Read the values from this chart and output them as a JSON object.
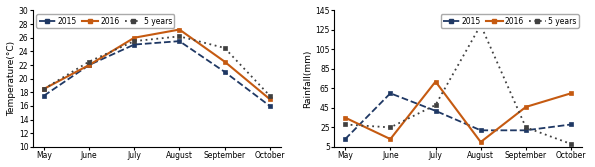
{
  "months": [
    "May",
    "June",
    "July",
    "August",
    "September",
    "October"
  ],
  "temp_2015": [
    17.5,
    22.0,
    25.0,
    25.5,
    21.0,
    16.0
  ],
  "temp_2016": [
    18.5,
    22.0,
    26.0,
    27.2,
    22.5,
    17.0
  ],
  "temp_5years": [
    18.5,
    22.5,
    25.5,
    26.2,
    24.5,
    17.5
  ],
  "rain_2015": [
    13,
    60,
    42,
    22,
    22,
    28
  ],
  "rain_2016": [
    35,
    13,
    72,
    10,
    46,
    60
  ],
  "rain_5years": [
    28,
    25,
    48,
    130,
    25,
    8
  ],
  "temp_ylim": [
    10,
    30
  ],
  "temp_yticks": [
    10,
    12,
    14,
    16,
    18,
    20,
    22,
    24,
    26,
    28,
    30
  ],
  "rain_ylim": [
    5,
    145
  ],
  "rain_yticks": [
    5,
    25,
    45,
    65,
    85,
    105,
    125,
    145
  ],
  "color_2015": "#1f3864",
  "color_2016": "#c55a11",
  "color_5years": "#404040",
  "bg_color": "#ffffff",
  "ylabel_temp": "Temperature(°C)",
  "ylabel_rain": "Rainfall(mm)"
}
